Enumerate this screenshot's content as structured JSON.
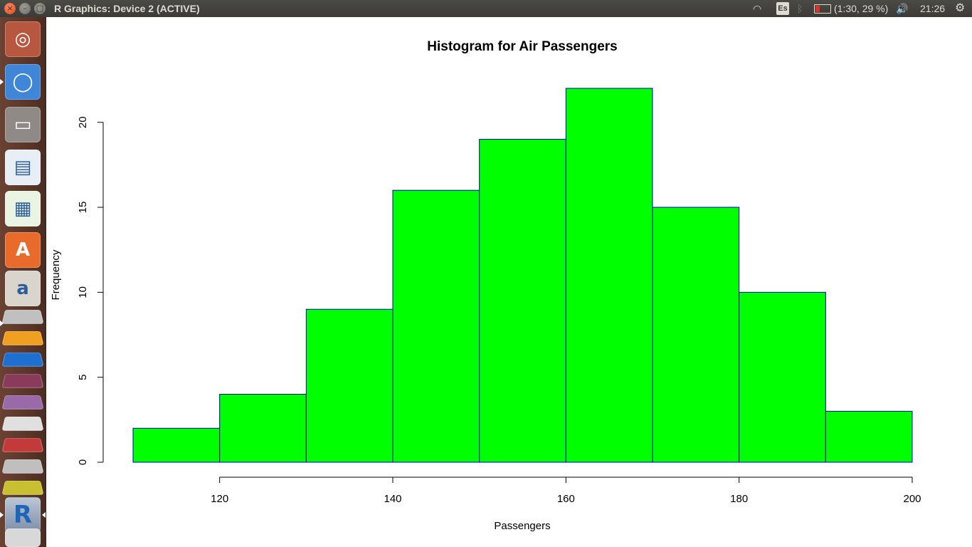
{
  "window": {
    "title": "R Graphics: Device 2 (ACTIVE)",
    "close_glyph": "×",
    "minimize_glyph": "–",
    "maximize_glyph": "□"
  },
  "tray": {
    "keyboard_layout": "Es",
    "battery": "(1:30, 29 %)",
    "clock": "21:26",
    "wifi_glyph": "◠",
    "bluetooth_glyph": "ᛒ",
    "volume_glyph": "🔊",
    "settings_glyph": "⚙"
  },
  "launcher": {
    "items": [
      {
        "icon": "ubuntu-dash-icon",
        "glyph": "◎",
        "color": "#b8573f"
      },
      {
        "icon": "chromium-icon",
        "glyph": "◯",
        "color": "#3f86d8"
      },
      {
        "icon": "files-icon",
        "glyph": "▭",
        "color": "#8f8a85"
      },
      {
        "icon": "libreoffice-writer-icon",
        "glyph": "▤",
        "color": "#e8eef6"
      },
      {
        "icon": "libreoffice-calc-icon",
        "glyph": "▦",
        "color": "#e9f4e3"
      },
      {
        "icon": "software-center-icon",
        "glyph": "A",
        "color": "#e86b2c"
      },
      {
        "icon": "amazon-icon",
        "glyph": "a",
        "color": "#d9d4cc"
      }
    ],
    "r_icon": {
      "icon": "r-icon",
      "glyph": "R"
    }
  },
  "chart_data": {
    "type": "bar",
    "title": "Histogram for Air Passengers",
    "xlabel": "Passengers",
    "ylabel": "Frequency",
    "bin_edges": [
      110,
      120,
      130,
      140,
      150,
      160,
      170,
      180,
      190,
      200
    ],
    "values": [
      2,
      4,
      9,
      16,
      19,
      22,
      15,
      10,
      3
    ],
    "x_ticks": [
      120,
      140,
      160,
      180,
      200
    ],
    "y_ticks": [
      0,
      5,
      10,
      15,
      20
    ],
    "xlim": [
      110,
      200
    ],
    "ylim": [
      0,
      22
    ],
    "bar_fill": "#00ff00",
    "bar_border": "#0000cd",
    "grid": false
  }
}
